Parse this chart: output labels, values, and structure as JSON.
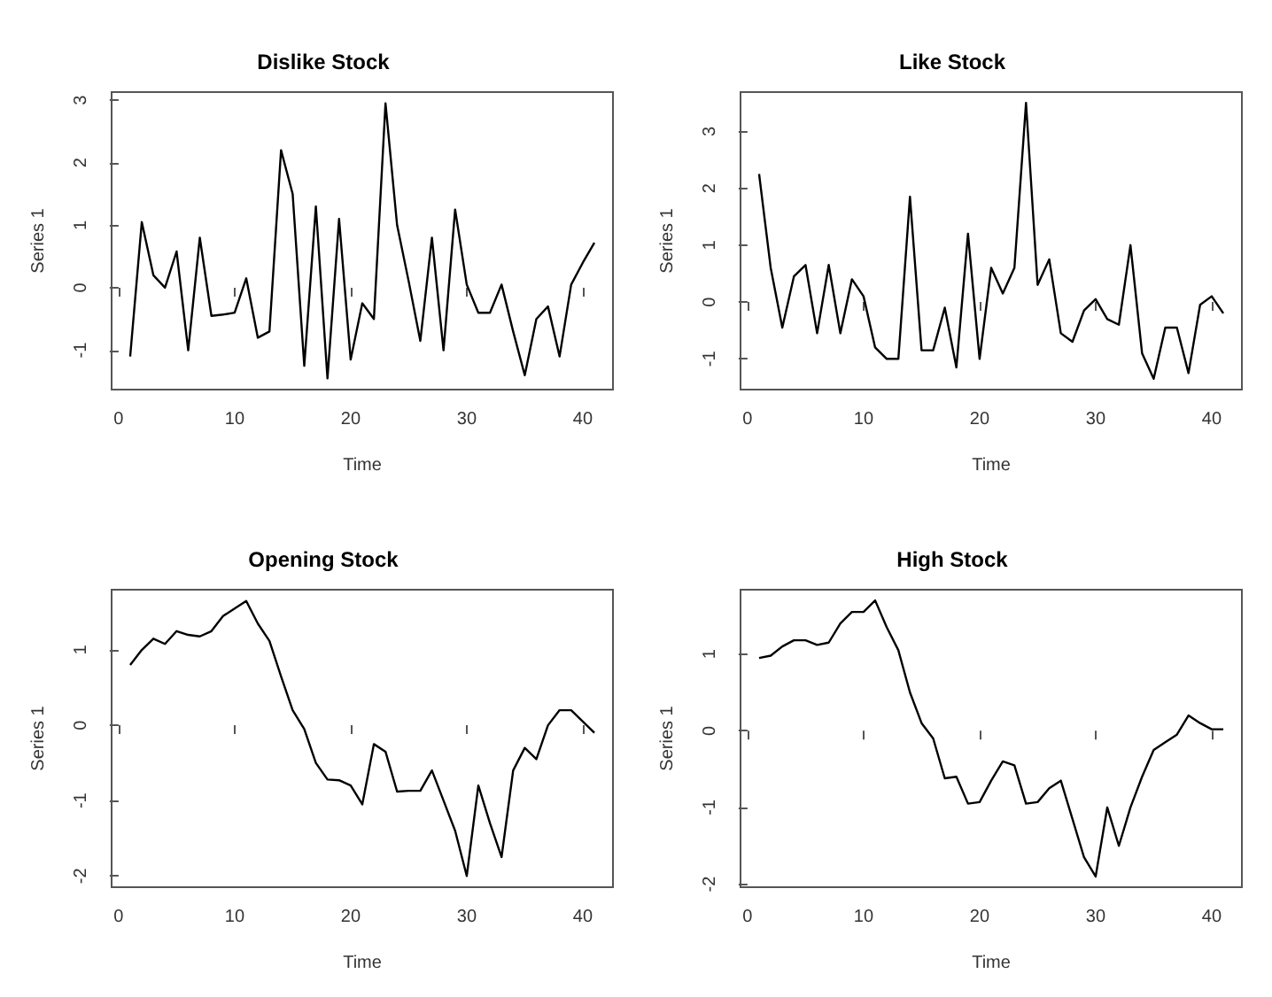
{
  "chart_data": [
    {
      "type": "line",
      "title": "Dislike Stock",
      "xlabel": "Time",
      "ylabel": "Series 1",
      "xlim": [
        -0.6,
        42.6
      ],
      "xticks": [
        0,
        10,
        20,
        30,
        40
      ],
      "ylim": [
        -1.63,
        3.13
      ],
      "yticks": [
        -1,
        0,
        1,
        2,
        3
      ],
      "x": [
        1,
        2,
        3,
        4,
        5,
        6,
        7,
        8,
        9,
        10,
        11,
        12,
        13,
        14,
        15,
        16,
        17,
        18,
        19,
        20,
        21,
        22,
        23,
        24,
        25,
        26,
        27,
        28,
        29,
        30,
        31,
        32,
        33,
        34,
        35,
        36,
        37,
        38,
        39,
        40,
        41
      ],
      "series": [
        {
          "color": "#000000",
          "values": [
            -1.1,
            1.05,
            0.2,
            0,
            0.58,
            -1.0,
            0.8,
            -0.45,
            -0.43,
            -0.4,
            0.15,
            -0.8,
            -0.7,
            2.2,
            1.5,
            -1.25,
            1.3,
            -1.45,
            1.1,
            -1.15,
            -0.25,
            -0.5,
            2.95,
            1.0,
            0.1,
            -0.85,
            0.8,
            -1.0,
            1.25,
            0.05,
            -0.4,
            -0.4,
            0.05,
            -0.7,
            -1.4,
            -0.5,
            -0.3,
            -1.1,
            0.05,
            0.4,
            0.72
          ]
        }
      ]
    },
    {
      "type": "line",
      "title": "Like Stock",
      "xlabel": "Time",
      "ylabel": "Series 1",
      "xlim": [
        -0.6,
        42.6
      ],
      "xticks": [
        0,
        10,
        20,
        30,
        40
      ],
      "ylim": [
        -1.54,
        3.69
      ],
      "yticks": [
        -1,
        0,
        1,
        2,
        3
      ],
      "x": [
        1,
        2,
        3,
        4,
        5,
        6,
        7,
        8,
        9,
        10,
        11,
        12,
        13,
        14,
        15,
        16,
        17,
        18,
        19,
        20,
        21,
        22,
        23,
        24,
        25,
        26,
        27,
        28,
        29,
        30,
        31,
        32,
        33,
        34,
        35,
        36,
        37,
        38,
        39,
        40,
        41
      ],
      "series": [
        {
          "color": "#000000",
          "values": [
            2.25,
            0.6,
            -0.45,
            0.45,
            0.65,
            -0.55,
            0.65,
            -0.55,
            0.4,
            0.1,
            -0.8,
            -1.0,
            -1.0,
            1.85,
            -0.85,
            -0.85,
            -0.1,
            -1.15,
            1.2,
            -1.0,
            0.6,
            0.15,
            0.6,
            3.5,
            0.3,
            0.75,
            -0.55,
            -0.7,
            -0.15,
            0.05,
            -0.3,
            -0.4,
            1.0,
            -0.9,
            -1.35,
            -0.45,
            -0.45,
            -1.25,
            -0.05,
            0.1,
            -0.2
          ]
        }
      ]
    },
    {
      "type": "line",
      "title": "Opening Stock",
      "xlabel": "Time",
      "ylabel": "Series 1",
      "xlim": [
        -0.6,
        42.6
      ],
      "xticks": [
        0,
        10,
        20,
        30,
        40
      ],
      "ylim": [
        -2.15,
        1.8
      ],
      "yticks": [
        -2,
        -1,
        0,
        1
      ],
      "x": [
        1,
        2,
        3,
        4,
        5,
        6,
        7,
        8,
        9,
        10,
        11,
        12,
        13,
        14,
        15,
        16,
        17,
        18,
        19,
        20,
        21,
        22,
        23,
        24,
        25,
        26,
        27,
        28,
        29,
        30,
        31,
        32,
        33,
        34,
        35,
        36,
        37,
        38,
        39,
        40,
        41
      ],
      "series": [
        {
          "color": "#000000",
          "values": [
            0.8,
            1.0,
            1.15,
            1.08,
            1.25,
            1.2,
            1.18,
            1.25,
            1.45,
            1.55,
            1.65,
            1.35,
            1.12,
            0.65,
            0.2,
            -0.05,
            -0.5,
            -0.72,
            -0.73,
            -0.8,
            -1.05,
            -0.25,
            -0.35,
            -0.88,
            -0.87,
            -0.87,
            -0.6,
            -1.0,
            -1.4,
            -2.0,
            -0.8,
            -1.3,
            -1.75,
            -0.6,
            -0.3,
            -0.45,
            0,
            0.2,
            0.2,
            0.05,
            -0.1
          ]
        }
      ]
    },
    {
      "type": "line",
      "title": "High Stock",
      "xlabel": "Time",
      "ylabel": "Series 1",
      "xlim": [
        -0.6,
        42.6
      ],
      "xticks": [
        0,
        10,
        20,
        30,
        40
      ],
      "ylim": [
        -2.04,
        1.84
      ],
      "yticks": [
        -2,
        -1,
        0,
        1
      ],
      "x": [
        1,
        2,
        3,
        4,
        5,
        6,
        7,
        8,
        9,
        10,
        11,
        12,
        13,
        14,
        15,
        16,
        17,
        18,
        19,
        20,
        21,
        22,
        23,
        24,
        25,
        26,
        27,
        28,
        29,
        30,
        31,
        32,
        33,
        34,
        35,
        36,
        37,
        38,
        39,
        40,
        41
      ],
      "series": [
        {
          "color": "#000000",
          "values": [
            0.95,
            0.98,
            1.1,
            1.18,
            1.18,
            1.12,
            1.15,
            1.4,
            1.55,
            1.55,
            1.7,
            1.35,
            1.05,
            0.5,
            0.1,
            -0.1,
            -0.62,
            -0.6,
            -0.95,
            -0.93,
            -0.65,
            -0.4,
            -0.45,
            -0.95,
            -0.93,
            -0.75,
            -0.65,
            -1.15,
            -1.65,
            -1.9,
            -1.0,
            -1.5,
            -1.0,
            -0.6,
            -0.25,
            -0.15,
            -0.05,
            0.2,
            0.1,
            0.02,
            0.02
          ]
        }
      ]
    }
  ]
}
